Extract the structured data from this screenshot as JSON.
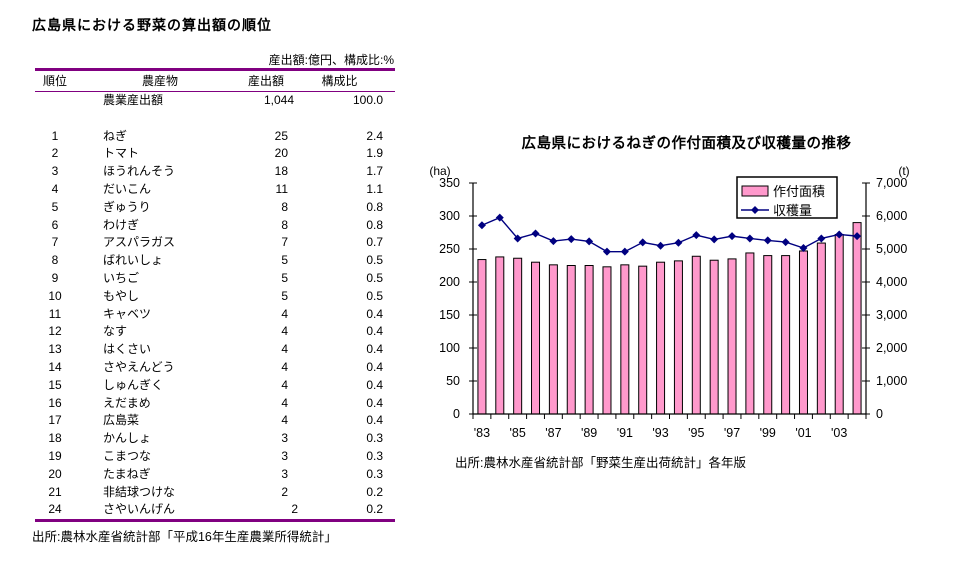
{
  "accent_colors": {
    "table_rule": "#800080",
    "bar_fill": "#FF99CC",
    "line": "#000080",
    "axis": "#000000"
  },
  "chart_data": [
    {
      "type": "table",
      "title": "広島県における野菜の算出額の順位",
      "unit_note": "産出額:億円、構成比:%",
      "columns": [
        "順位",
        "農産物",
        "産出額",
        "構成比"
      ],
      "rows": [
        [
          "",
          "農業産出額",
          "1,044",
          "100.0"
        ],
        [
          "1",
          "ねぎ",
          "25",
          "2.4"
        ],
        [
          "2",
          "トマト",
          "20",
          "1.9"
        ],
        [
          "3",
          "ほうれんそう",
          "18",
          "1.7"
        ],
        [
          "4",
          "だいこん",
          "11",
          "1.1"
        ],
        [
          "5",
          "ぎゅうり",
          "8",
          "0.8"
        ],
        [
          "6",
          "わけぎ",
          "8",
          "0.8"
        ],
        [
          "7",
          "アスパラガス",
          "7",
          "0.7"
        ],
        [
          "8",
          "ばれいしょ",
          "5",
          "0.5"
        ],
        [
          "9",
          "いちご",
          "5",
          "0.5"
        ],
        [
          "10",
          "もやし",
          "5",
          "0.5"
        ],
        [
          "11",
          "キャベツ",
          "4",
          "0.4"
        ],
        [
          "12",
          "なす",
          "4",
          "0.4"
        ],
        [
          "13",
          "はくさい",
          "4",
          "0.4"
        ],
        [
          "14",
          "さやえんどう",
          "4",
          "0.4"
        ],
        [
          "15",
          "しゅんぎく",
          "4",
          "0.4"
        ],
        [
          "16",
          "えだまめ",
          "4",
          "0.4"
        ],
        [
          "17",
          "広島菜",
          "4",
          "0.4"
        ],
        [
          "18",
          "かんしょ",
          "3",
          "0.3"
        ],
        [
          "19",
          "こまつな",
          "3",
          "0.3"
        ],
        [
          "20",
          "たまねぎ",
          "3",
          "0.3"
        ],
        [
          "21",
          "非結球つけな",
          "2",
          "0.2"
        ],
        [
          "24",
          "さやいんげん",
          "2",
          "0.2"
        ]
      ],
      "source": "出所:農林水産省統計部「平成16年生産農業所得統計」"
    },
    {
      "type": "combo",
      "title": "広島県におけるねぎの作付面積及び収穫量の推移",
      "x": [
        1983,
        1984,
        1985,
        1986,
        1987,
        1988,
        1989,
        1990,
        1991,
        1992,
        1993,
        1994,
        1995,
        1996,
        1997,
        1998,
        1999,
        2000,
        2001,
        2002,
        2003,
        2004
      ],
      "x_tick_labels": [
        "'83",
        "'85",
        "'87",
        "'89",
        "'91",
        "'93",
        "'95",
        "'97",
        "'99",
        "'01",
        "'03"
      ],
      "series": [
        {
          "name": "作付面積",
          "type": "bar",
          "axis": "left",
          "unit": "ha",
          "color": "#FF99CC",
          "values": [
            234,
            238,
            236,
            230,
            226,
            225,
            225,
            223,
            226,
            224,
            230,
            232,
            239,
            233,
            235,
            244,
            240,
            240,
            247,
            259,
            272,
            290
          ]
        },
        {
          "name": "収穫量",
          "type": "line",
          "axis": "right",
          "unit": "t",
          "color": "#000080",
          "marker": "diamond",
          "values": [
            5720,
            5950,
            5320,
            5470,
            5240,
            5300,
            5230,
            4920,
            4920,
            5200,
            5100,
            5190,
            5420,
            5290,
            5390,
            5320,
            5260,
            5210,
            5030,
            5320,
            5440,
            5390
          ]
        }
      ],
      "left_axis": {
        "label": "(ha)",
        "min": 0,
        "max": 350,
        "tick_step": 50,
        "tick_labels": [
          "0",
          "50",
          "100",
          "150",
          "200",
          "250",
          "300",
          "350"
        ]
      },
      "right_axis": {
        "label": "(t)",
        "min": 0,
        "max": 7000,
        "tick_step": 1000,
        "tick_labels": [
          "0",
          "1,000",
          "2,000",
          "3,000",
          "4,000",
          "5,000",
          "6,000",
          "7,000"
        ]
      },
      "legend_position": "top-right-inside",
      "grid": false,
      "source": "出所:農林水産省統計部「野菜生産出荷統計」各年版"
    }
  ]
}
